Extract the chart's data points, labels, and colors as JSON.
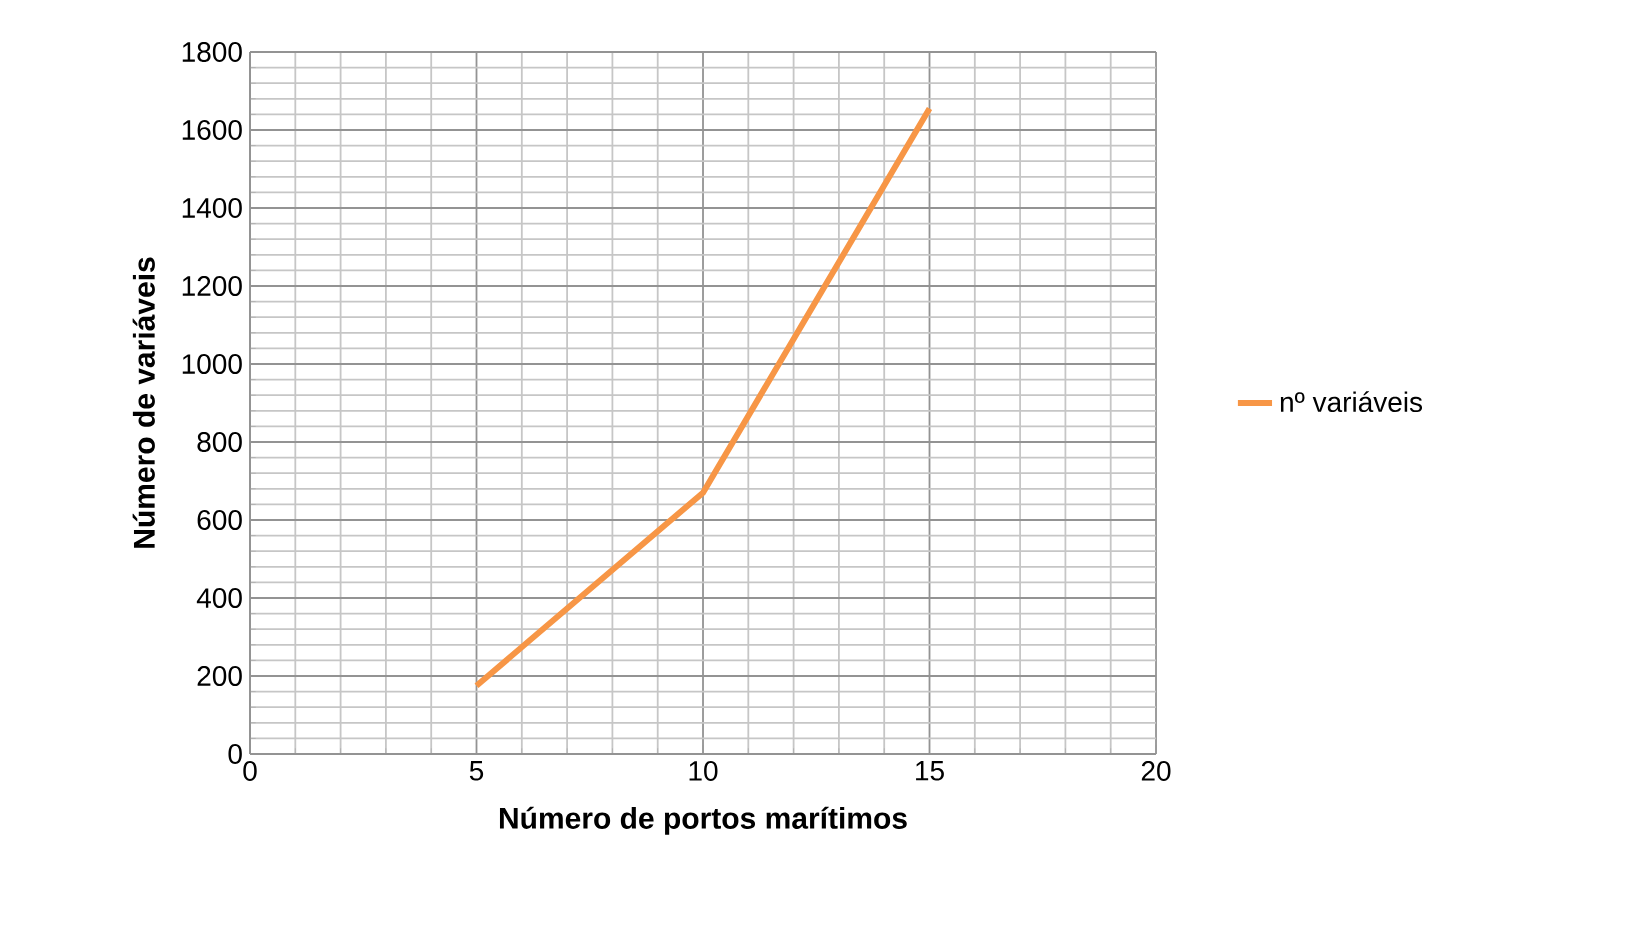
{
  "chart_data": {
    "type": "line",
    "xlabel": "Número de portos marítimos",
    "ylabel": "Número de variáveis",
    "x": [
      5,
      10,
      15
    ],
    "series": [
      {
        "name": "nº variáveis",
        "color": "#f79646",
        "values": [
          175,
          670,
          1655
        ]
      }
    ],
    "xlim": [
      0,
      20
    ],
    "xticks": [
      0,
      5,
      10,
      15,
      20
    ],
    "ylim": [
      0,
      1800
    ],
    "yticks": [
      0,
      200,
      400,
      600,
      800,
      1000,
      1200,
      1400,
      1600,
      1800
    ],
    "grid": true,
    "legend": "right",
    "marker": "none",
    "line_style": "solid"
  }
}
